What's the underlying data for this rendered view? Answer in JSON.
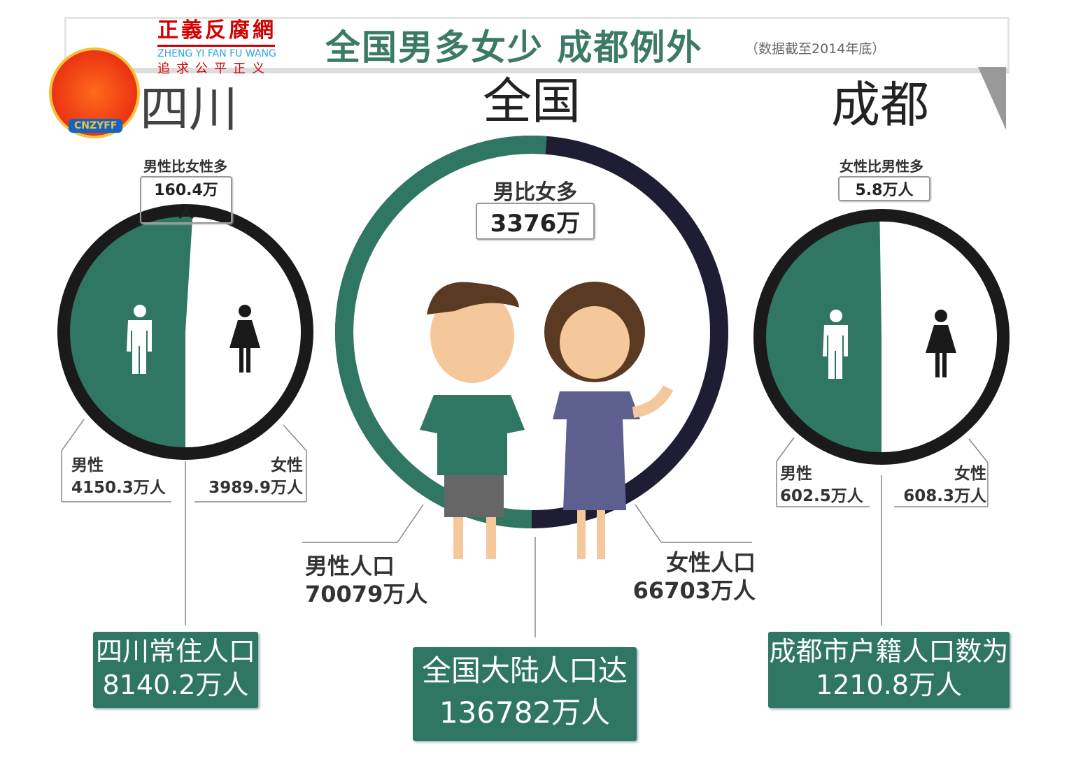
{
  "header": {
    "title": "全国男多女少  成都例外",
    "subtitle": "（数据截至2014年底）"
  },
  "logo": {
    "name": "正義反腐網",
    "pinyin": "ZHENG YI FAN FU WANG",
    "motto": "追求公平正义",
    "badge": "CNZYFF"
  },
  "colors": {
    "male": "#2f7762",
    "female_national": "#1e1d33",
    "female_ring": "#1a1a1a",
    "box": "#2f7762"
  },
  "chart_data": [
    {
      "type": "pie",
      "title": "四川",
      "note_label": "男性比女性多",
      "note_value": "160.4万人",
      "categories": [
        "男性",
        "女性"
      ],
      "values": [
        4150.3,
        3989.9
      ],
      "value_labels": [
        "4150.3万人",
        "3989.9万人"
      ],
      "total_label": "四川常住人口",
      "total_value": "8140.2万人",
      "icons": [
        "male-icon",
        "female-icon"
      ]
    },
    {
      "type": "pie",
      "title": "全国",
      "note_label": "男比女多",
      "note_value": "3376万",
      "categories": [
        "男性人口",
        "女性人口"
      ],
      "values": [
        70079,
        66703
      ],
      "value_labels": [
        "70079万人",
        "66703万人"
      ],
      "total_label": "全国大陆人口达",
      "total_value": "136782万人"
    },
    {
      "type": "pie",
      "title": "成都",
      "note_label": "女性比男性多",
      "note_value": "5.8万人",
      "categories": [
        "男性",
        "女性"
      ],
      "values": [
        602.5,
        608.3
      ],
      "value_labels": [
        "602.5万人",
        "608.3万人"
      ],
      "total_label": "成都市户籍人口数为",
      "total_value": "1210.8万人",
      "icons": [
        "male-icon",
        "female-icon"
      ]
    }
  ]
}
